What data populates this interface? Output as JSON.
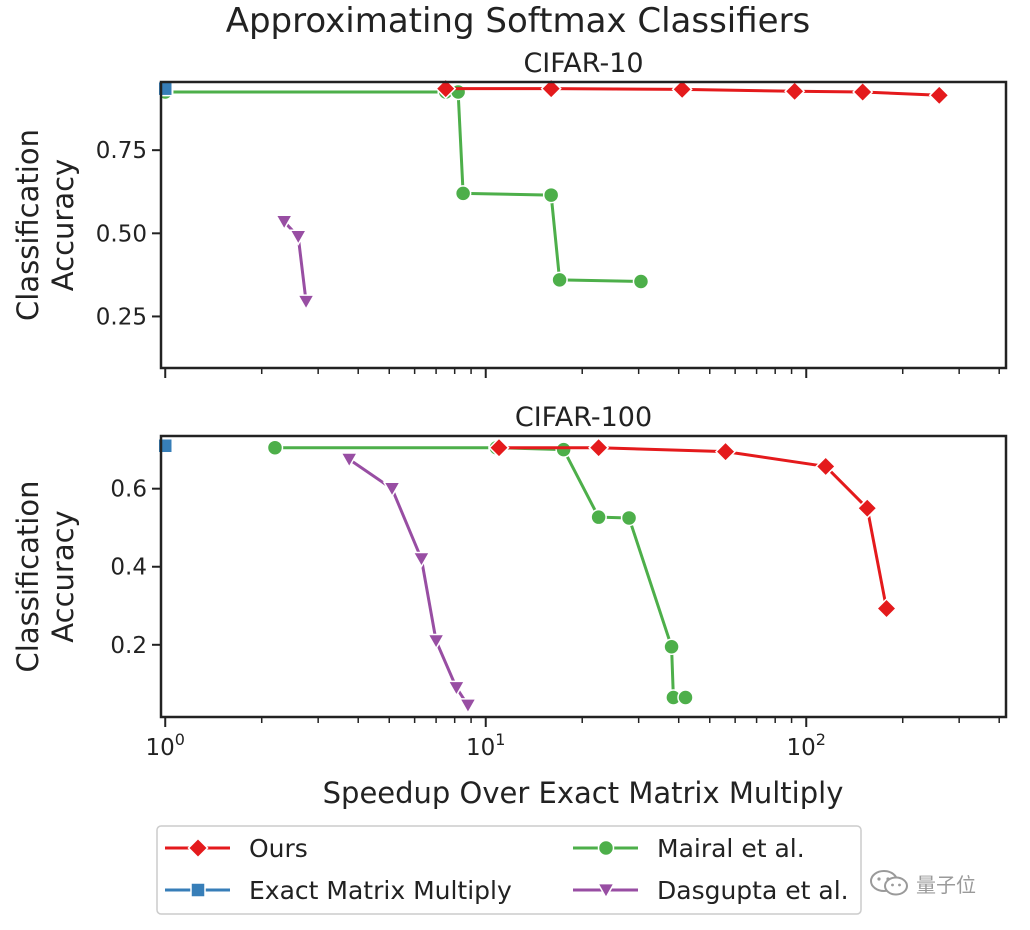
{
  "chart_data": {
    "type": "line",
    "title": "Approximating Softmax Classifiers",
    "xlabel": "Speedup Over Exact Matrix Multiply",
    "xscale": "log",
    "xlim": [
      0.97,
      420
    ],
    "x_ticks": [
      {
        "value": 1,
        "base": "10",
        "exp": "0"
      },
      {
        "value": 10,
        "base": "10",
        "exp": "1"
      },
      {
        "value": 100,
        "base": "10",
        "exp": "2"
      }
    ],
    "legend_location": "bottom",
    "legend": [
      {
        "name": "Ours",
        "color": "#e41a1c",
        "marker": "diamond"
      },
      {
        "name": "Exact Matrix Multiply",
        "color": "#377eb8",
        "marker": "square"
      },
      {
        "name": "Mairal et al.",
        "color": "#4daf4a",
        "marker": "circle"
      },
      {
        "name": "Dasgupta et al.",
        "color": "#984ea3",
        "marker": "triangle-down"
      }
    ],
    "panels": [
      {
        "title": "CIFAR-10",
        "ylabel_line1": "Classification",
        "ylabel_line2": "Accuracy",
        "ylim": [
          0.095,
          0.955
        ],
        "y_ticks": [
          0.25,
          0.5,
          0.75
        ],
        "y_tick_labels": [
          "0.25",
          "0.50",
          "0.75"
        ],
        "series": [
          {
            "name": "Mairal et al.",
            "x": [
              1.0,
              7.5,
              8.2,
              8.5,
              16.0,
              17.0,
              30.5
            ],
            "y": [
              0.925,
              0.925,
              0.925,
              0.62,
              0.615,
              0.36,
              0.355
            ]
          },
          {
            "name": "Dasgupta et al.",
            "x": [
              2.35,
              2.6,
              2.75
            ],
            "y": [
              0.535,
              0.49,
              0.295
            ]
          },
          {
            "name": "Ours",
            "x": [
              7.5,
              16.0,
              41.0,
              92.0,
              150.0,
              260.0
            ],
            "y": [
              0.935,
              0.935,
              0.933,
              0.927,
              0.925,
              0.915
            ]
          },
          {
            "name": "Exact Matrix Multiply",
            "x": [
              1.0
            ],
            "y": [
              0.935
            ]
          }
        ]
      },
      {
        "title": "CIFAR-100",
        "ylabel_line1": "Classification",
        "ylabel_line2": "Accuracy",
        "ylim": [
          0.015,
          0.735
        ],
        "y_ticks": [
          0.2,
          0.4,
          0.6
        ],
        "y_tick_labels": [
          "0.2",
          "0.4",
          "0.6"
        ],
        "series": [
          {
            "name": "Mairal et al.",
            "x": [
              2.2,
              10.8,
              17.5,
              22.5,
              28.0,
              38.0,
              38.5,
              42.0
            ],
            "y": [
              0.705,
              0.705,
              0.7,
              0.527,
              0.525,
              0.195,
              0.065,
              0.065
            ]
          },
          {
            "name": "Dasgupta et al.",
            "x": [
              3.75,
              5.1,
              6.3,
              7.0,
              8.1,
              8.8
            ],
            "y": [
              0.675,
              0.6,
              0.42,
              0.21,
              0.09,
              0.045
            ]
          },
          {
            "name": "Ours",
            "x": [
              11.0,
              22.5,
              56.0,
              115.0,
              155.0,
              178.0
            ],
            "y": [
              0.705,
              0.705,
              0.695,
              0.657,
              0.55,
              0.293
            ]
          },
          {
            "name": "Exact Matrix Multiply",
            "x": [
              1.0
            ],
            "y": [
              0.71
            ]
          }
        ]
      }
    ]
  },
  "watermark": {
    "text": "量子位"
  }
}
